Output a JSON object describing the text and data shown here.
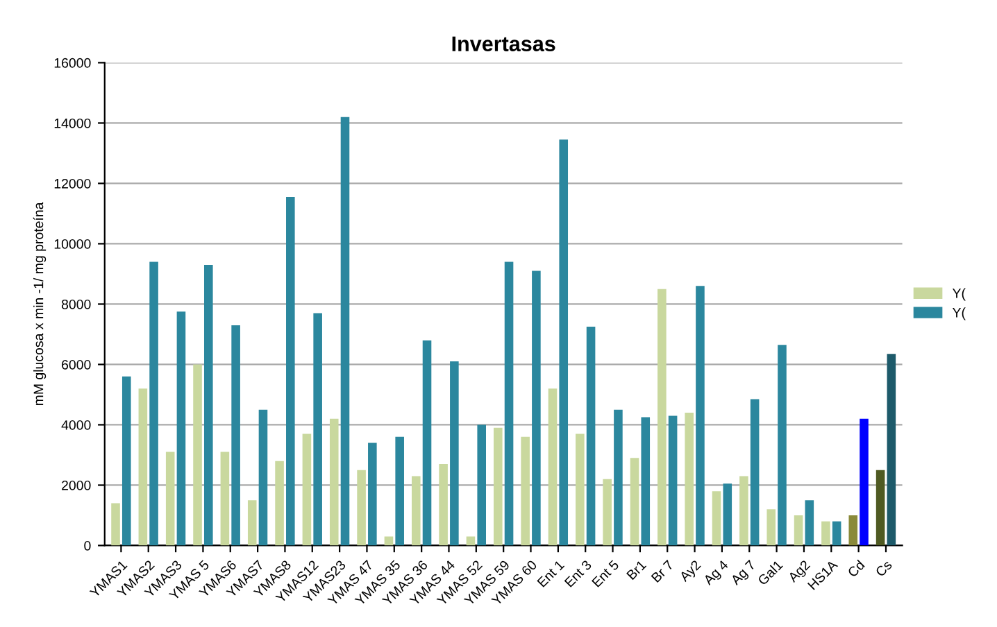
{
  "chart_data": {
    "type": "bar",
    "title": "Invertasas",
    "ylabel": "mM glucosa x min -1/ mg proteína",
    "categories": [
      "YMAS1",
      "YMAS2",
      "YMAS3",
      "YMAS 5",
      "YMAS6",
      "YMAS7",
      "YMAS8",
      "YMAS12",
      "YMAS23",
      "YMAS 47",
      "YMAS 35",
      "YMAS 36",
      "YMAS 44",
      "YMAS 52",
      "YMAS 59",
      "YMAS 60",
      "Ent 1",
      "Ent 3",
      "Ent 5",
      "Br1",
      "Br 7",
      "Ay2",
      "Ag 4",
      "Ag 7",
      "Gal1",
      "Ag2",
      "HS1A",
      "Cd",
      "Cs"
    ],
    "series": [
      {
        "name": "Y(",
        "color": "#c9d89e",
        "colors": [
          "#c9d89e",
          "#c9d89e",
          "#c9d89e",
          "#c9d89e",
          "#c9d89e",
          "#c9d89e",
          "#c9d89e",
          "#c9d89e",
          "#c9d89e",
          "#c9d89e",
          "#c9d89e",
          "#c9d89e",
          "#c9d89e",
          "#c9d89e",
          "#c9d89e",
          "#c9d89e",
          "#c9d89e",
          "#c9d89e",
          "#c9d89e",
          "#c9d89e",
          "#c9d89e",
          "#c9d89e",
          "#c9d89e",
          "#c9d89e",
          "#c9d89e",
          "#c9d89e",
          "#c9d89e",
          "#8a8a3a",
          "#4f5a22"
        ],
        "values": [
          1400,
          5200,
          3100,
          6000,
          3100,
          1500,
          2800,
          3700,
          4200,
          2500,
          300,
          2300,
          2700,
          300,
          3900,
          3600,
          5200,
          3700,
          2200,
          2900,
          8500,
          4400,
          1800,
          2300,
          1200,
          1000,
          800,
          1000,
          2500
        ]
      },
      {
        "name": "Y(",
        "color": "#2b879e",
        "colors": [
          "#2b879e",
          "#2b879e",
          "#2b879e",
          "#2b879e",
          "#2b879e",
          "#2b879e",
          "#2b879e",
          "#2b879e",
          "#2b879e",
          "#2b879e",
          "#2b879e",
          "#2b879e",
          "#2b879e",
          "#2b879e",
          "#2b879e",
          "#2b879e",
          "#2b879e",
          "#2b879e",
          "#2b879e",
          "#2b879e",
          "#2b879e",
          "#2b879e",
          "#2b879e",
          "#2b879e",
          "#2b879e",
          "#2b879e",
          "#2b879e",
          "#0000ff",
          "#1d5a6a"
        ],
        "values": [
          5600,
          9400,
          7750,
          9300,
          7300,
          4500,
          11550,
          7700,
          14200,
          3400,
          3600,
          6800,
          6100,
          4000,
          9400,
          9100,
          13450,
          7250,
          4500,
          4250,
          4300,
          8600,
          2050,
          4850,
          6650,
          1500,
          800,
          4200,
          6350
        ]
      }
    ],
    "ylim": [
      0,
      16000
    ],
    "yticks": [
      0,
      2000,
      4000,
      6000,
      8000,
      10000,
      12000,
      14000,
      16000
    ],
    "grid": "y",
    "legend": "right"
  }
}
